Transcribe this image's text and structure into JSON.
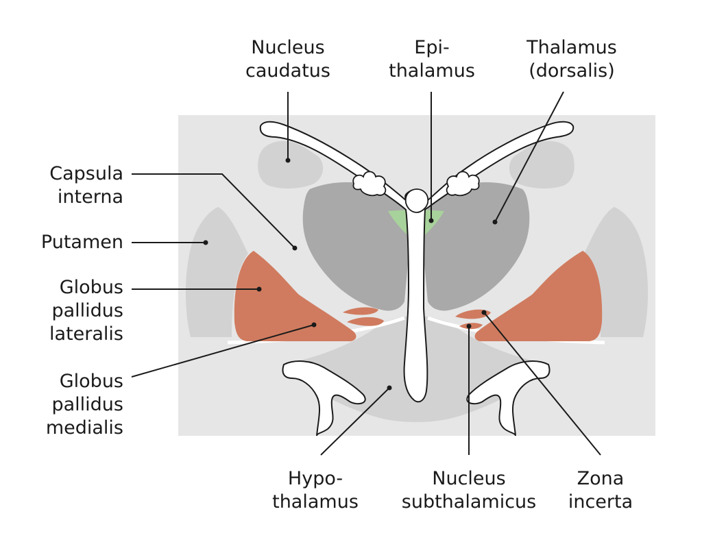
{
  "colors": {
    "background_panel": "#e6e6e6",
    "light_structure": "#d2d2d2",
    "thalamus": "#a9a9a9",
    "globus_pallidus": "#d07b5f",
    "epithalamus": "#a8d29b",
    "ventricle": "#ffffff",
    "outline": "#1a1a1a"
  },
  "labels": {
    "nucleus_caudatus": "Nucleus\ncaudatus",
    "epithalamus": "Epi-\nthalamus",
    "thalamus_dorsalis": "Thalamus\n(dorsalis)",
    "capsula_interna": "Capsula\ninterna",
    "putamen": "Putamen",
    "globus_pallidus_lateralis": "Globus\npallidus\nlateralis",
    "globus_pallidus_medialis": "Globus\npallidus\nmedialis",
    "hypothalamus": "Hypo-\nthalamus",
    "nucleus_subthalamicus": "Nucleus\nsubthalamicus",
    "zona_incerta": "Zona\nincerta"
  }
}
